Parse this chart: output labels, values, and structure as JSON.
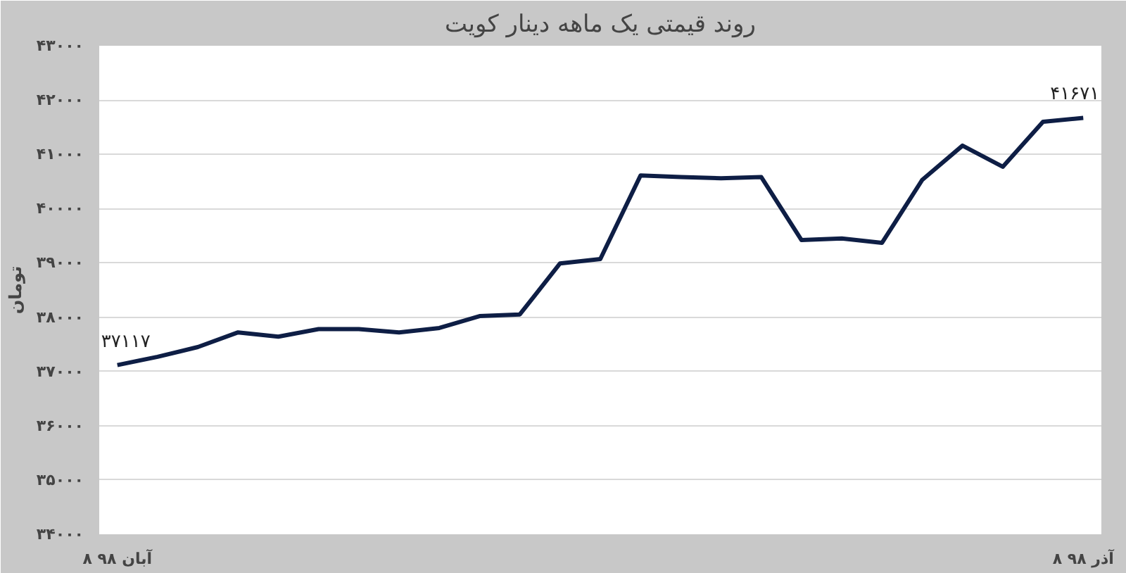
{
  "chart_data": {
    "type": "line",
    "title": "روند قیمتی یک ماهه دینار کویت",
    "ylabel": "تومان",
    "categories": [
      "۸ آبان ۹۸",
      null,
      null,
      null,
      null,
      null,
      null,
      null,
      null,
      null,
      null,
      null,
      null,
      null,
      null,
      null,
      null,
      null,
      null,
      null,
      null,
      null,
      null,
      null,
      "۸ آذر ۹۸"
    ],
    "series": [
      {
        "color": "#0e1e45",
        "values": [
          37117,
          37270,
          37450,
          37720,
          37640,
          37780,
          37780,
          37720,
          37800,
          38020,
          38050,
          38990,
          39070,
          40610,
          40580,
          40560,
          40580,
          39420,
          39450,
          39370,
          40530,
          41160,
          40770,
          41600,
          41671
        ],
        "value_labels": [
          "۳۷۱۱۷",
          null,
          null,
          null,
          null,
          null,
          null,
          null,
          null,
          null,
          null,
          null,
          null,
          null,
          null,
          null,
          null,
          null,
          null,
          null,
          null,
          null,
          null,
          null,
          "۴۱۶۷۱"
        ]
      }
    ],
    "ylim": [
      34000,
      43000
    ],
    "yticks": [
      {
        "value": 34000,
        "label": "۳۴۰۰۰"
      },
      {
        "value": 35000,
        "label": "۳۵۰۰۰"
      },
      {
        "value": 36000,
        "label": "۳۶۰۰۰"
      },
      {
        "value": 37000,
        "label": "۳۷۰۰۰"
      },
      {
        "value": 38000,
        "label": "۳۸۰۰۰"
      },
      {
        "value": 39000,
        "label": "۳۹۰۰۰"
      },
      {
        "value": 40000,
        "label": "۴۰۰۰۰"
      },
      {
        "value": 41000,
        "label": "۴۱۰۰۰"
      },
      {
        "value": 42000,
        "label": "۴۲۰۰۰"
      },
      {
        "value": 43000,
        "label": "۴۳۰۰۰"
      }
    ],
    "grid": "y",
    "marker": "none",
    "line_style": "solid"
  }
}
